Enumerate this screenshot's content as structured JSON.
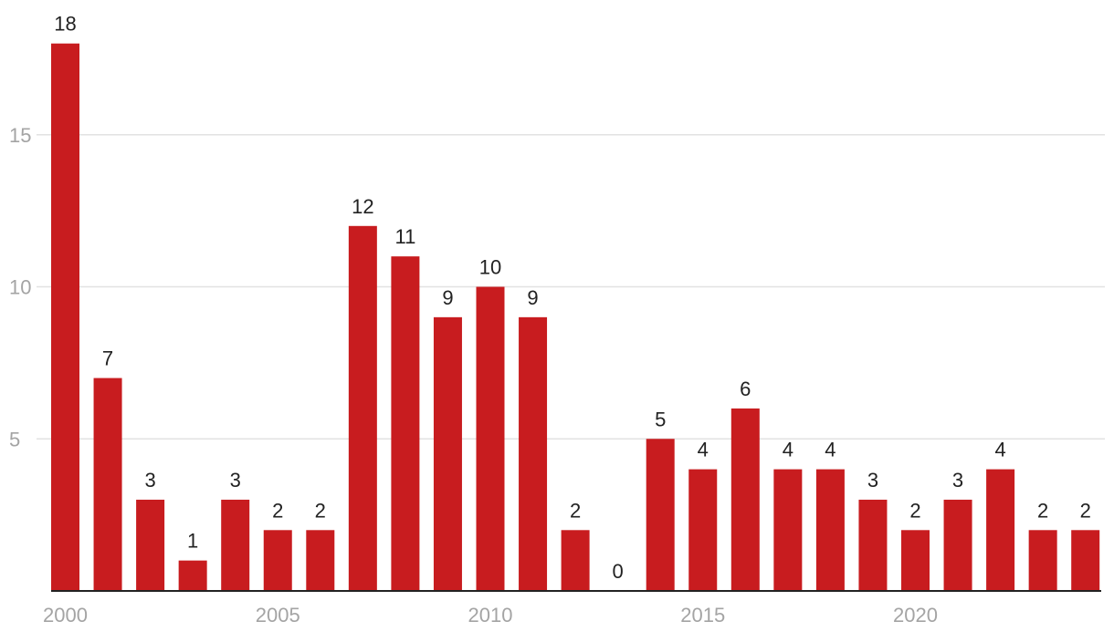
{
  "chart_data": {
    "type": "bar",
    "title": "",
    "xlabel": "",
    "ylabel": "",
    "categories": [
      2000,
      2001,
      2002,
      2003,
      2004,
      2005,
      2006,
      2007,
      2008,
      2009,
      2010,
      2011,
      2012,
      2013,
      2014,
      2015,
      2016,
      2017,
      2018,
      2019,
      2020,
      2021,
      2022,
      2023,
      2024
    ],
    "values": [
      18,
      7,
      3,
      1,
      3,
      2,
      2,
      12,
      11,
      9,
      10,
      9,
      2,
      0,
      5,
      4,
      6,
      4,
      4,
      3,
      2,
      3,
      4,
      2,
      2
    ],
    "ylim": [
      0,
      18
    ],
    "yticks": [
      5,
      10,
      15
    ],
    "xticks": [
      2000,
      2005,
      2010,
      2015,
      2020
    ],
    "grid": true,
    "data_labels": true,
    "bar_color": "#c81c1f",
    "tick_color": "#a4a4a4",
    "label_color": "#222222",
    "grid_color": "#e2e2e2"
  }
}
